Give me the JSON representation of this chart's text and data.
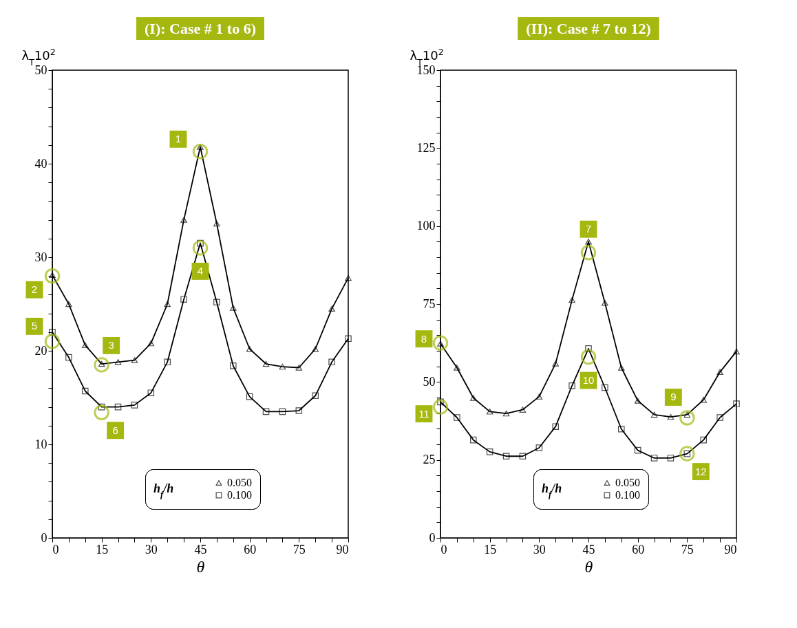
{
  "chart_data": [
    {
      "type": "line",
      "title": "(I): Case # 1 to 6)",
      "xlabel": "θ",
      "ylabel": "λ$_{T}$10$^{2}$",
      "legend_title": "h$_{f}$/h",
      "legend": "bottom",
      "grid": false,
      "x": [
        0,
        5,
        10,
        15,
        20,
        25,
        30,
        35,
        40,
        45,
        50,
        55,
        60,
        65,
        70,
        75,
        80,
        85,
        90
      ],
      "xlim": [
        0,
        90
      ],
      "xticks": [
        0,
        {
          "value": 5,
          "label": null
        },
        {
          "value": 10,
          "label": null
        },
        15,
        {
          "value": 20,
          "label": null
        },
        {
          "value": 25,
          "label": null
        },
        30,
        {
          "value": 35,
          "label": null
        },
        {
          "value": 40,
          "label": null
        },
        45,
        {
          "value": 50,
          "label": null
        },
        {
          "value": 55,
          "label": null
        },
        60,
        {
          "value": 65,
          "label": null
        },
        {
          "value": 70,
          "label": null
        },
        75,
        {
          "value": 80,
          "label": null
        },
        {
          "value": 85,
          "label": null
        },
        90
      ],
      "ylim": [
        0,
        50
      ],
      "yticks": [
        0,
        {
          "value": 2,
          "label": null
        },
        {
          "value": 4,
          "label": null
        },
        {
          "value": 6,
          "label": null
        },
        {
          "value": 8,
          "label": null
        },
        10,
        {
          "value": 12,
          "label": null
        },
        {
          "value": 14,
          "label": null
        },
        {
          "value": 16,
          "label": null
        },
        {
          "value": 18,
          "label": null
        },
        20,
        {
          "value": 22,
          "label": null
        },
        {
          "value": 24,
          "label": null
        },
        {
          "value": 26,
          "label": null
        },
        {
          "value": 28,
          "label": null
        },
        30,
        {
          "value": 32,
          "label": null
        },
        {
          "value": 34,
          "label": null
        },
        {
          "value": 36,
          "label": null
        },
        {
          "value": 38,
          "label": null
        },
        40,
        {
          "value": 42,
          "label": null
        },
        {
          "value": 44,
          "label": null
        },
        {
          "value": 46,
          "label": null
        },
        {
          "value": 48,
          "label": null
        },
        50
      ],
      "series": [
        {
          "name": "0.050",
          "color": "#000000",
          "marker": "triangle",
          "values": [
            28.1,
            25.0,
            20.6,
            18.6,
            18.8,
            19.0,
            20.8,
            25.0,
            34.0,
            41.8,
            33.6,
            24.6,
            20.2,
            18.6,
            18.3,
            18.2,
            20.2,
            24.5,
            27.8
          ]
        },
        {
          "name": "0.100",
          "color": "#000000",
          "marker": "square",
          "values": [
            22.0,
            19.3,
            15.7,
            14.0,
            14.0,
            14.2,
            15.5,
            18.8,
            25.5,
            31.5,
            25.2,
            18.4,
            15.1,
            13.5,
            13.5,
            13.6,
            15.2,
            18.8,
            21.3
          ]
        }
      ],
      "annotations": [
        {
          "text": "1",
          "x": 45,
          "y": 41.3
        },
        {
          "text": "2",
          "x": 0,
          "y": 28.0
        },
        {
          "text": "3",
          "x": 15,
          "y": 18.5
        },
        {
          "text": "4",
          "x": 45,
          "y": 31.0
        },
        {
          "text": "5",
          "x": 0,
          "y": 21.0
        },
        {
          "text": "6",
          "x": 15,
          "y": 13.4
        }
      ]
    },
    {
      "type": "line",
      "title": "(II): Case # 7 to 12)",
      "xlabel": "θ",
      "ylabel": "λ$_{T}$10$^{2}$",
      "legend_title": "h$_{f}$/h",
      "legend": "bottom",
      "grid": false,
      "x": [
        0,
        5,
        10,
        15,
        20,
        25,
        30,
        35,
        40,
        45,
        50,
        55,
        60,
        65,
        70,
        75,
        80,
        85,
        90
      ],
      "xlim": [
        0,
        90
      ],
      "xticks": [
        0,
        {
          "value": 5,
          "label": null
        },
        {
          "value": 10,
          "label": null
        },
        15,
        {
          "value": 20,
          "label": null
        },
        {
          "value": 25,
          "label": null
        },
        30,
        {
          "value": 35,
          "label": null
        },
        {
          "value": 40,
          "label": null
        },
        45,
        {
          "value": 50,
          "label": null
        },
        {
          "value": 55,
          "label": null
        },
        60,
        {
          "value": 65,
          "label": null
        },
        {
          "value": 70,
          "label": null
        },
        75,
        {
          "value": 80,
          "label": null
        },
        {
          "value": 85,
          "label": null
        },
        90
      ],
      "ylim": [
        0,
        150
      ],
      "yticks": [
        0,
        {
          "value": 5,
          "label": null
        },
        {
          "value": 10,
          "label": null
        },
        {
          "value": 15,
          "label": null
        },
        {
          "value": 20,
          "label": null
        },
        25,
        {
          "value": 30,
          "label": null
        },
        {
          "value": 35,
          "label": null
        },
        {
          "value": 40,
          "label": null
        },
        {
          "value": 45,
          "label": null
        },
        50,
        {
          "value": 55,
          "label": null
        },
        {
          "value": 60,
          "label": null
        },
        {
          "value": 65,
          "label": null
        },
        {
          "value": 70,
          "label": null
        },
        75,
        {
          "value": 80,
          "label": null
        },
        {
          "value": 85,
          "label": null
        },
        {
          "value": 90,
          "label": null
        },
        {
          "value": 95,
          "label": null
        },
        100,
        {
          "value": 105,
          "label": null
        },
        {
          "value": 110,
          "label": null
        },
        {
          "value": 115,
          "label": null
        },
        {
          "value": 120,
          "label": null
        },
        125,
        {
          "value": 130,
          "label": null
        },
        {
          "value": 135,
          "label": null
        },
        {
          "value": 140,
          "label": null
        },
        {
          "value": 145,
          "label": null
        },
        150
      ],
      "series": [
        {
          "name": "0.050",
          "color": "#000000",
          "marker": "triangle",
          "values": [
            62.3,
            54.6,
            44.9,
            40.5,
            39.9,
            41.1,
            45.3,
            55.9,
            76.3,
            95.0,
            75.4,
            54.6,
            44.0,
            39.5,
            38.8,
            39.5,
            44.3,
            53.2,
            59.8
          ]
        },
        {
          "name": "0.100",
          "color": "#000000",
          "marker": "square",
          "values": [
            43.6,
            38.6,
            31.4,
            27.6,
            26.2,
            26.2,
            28.9,
            35.7,
            48.8,
            60.7,
            48.2,
            34.9,
            28.1,
            25.6,
            25.6,
            27.0,
            31.4,
            38.6,
            43.0
          ]
        }
      ],
      "annotations": [
        {
          "text": "7",
          "x": 45,
          "y": 91.5
        },
        {
          "text": "8",
          "x": 0,
          "y": 62.5
        },
        {
          "text": "9",
          "x": 75,
          "y": 38.5
        },
        {
          "text": "10",
          "x": 45,
          "y": 58.0
        },
        {
          "text": "11",
          "x": 0,
          "y": 42.0
        },
        {
          "text": "12",
          "x": 75,
          "y": 27.0
        }
      ]
    }
  ]
}
